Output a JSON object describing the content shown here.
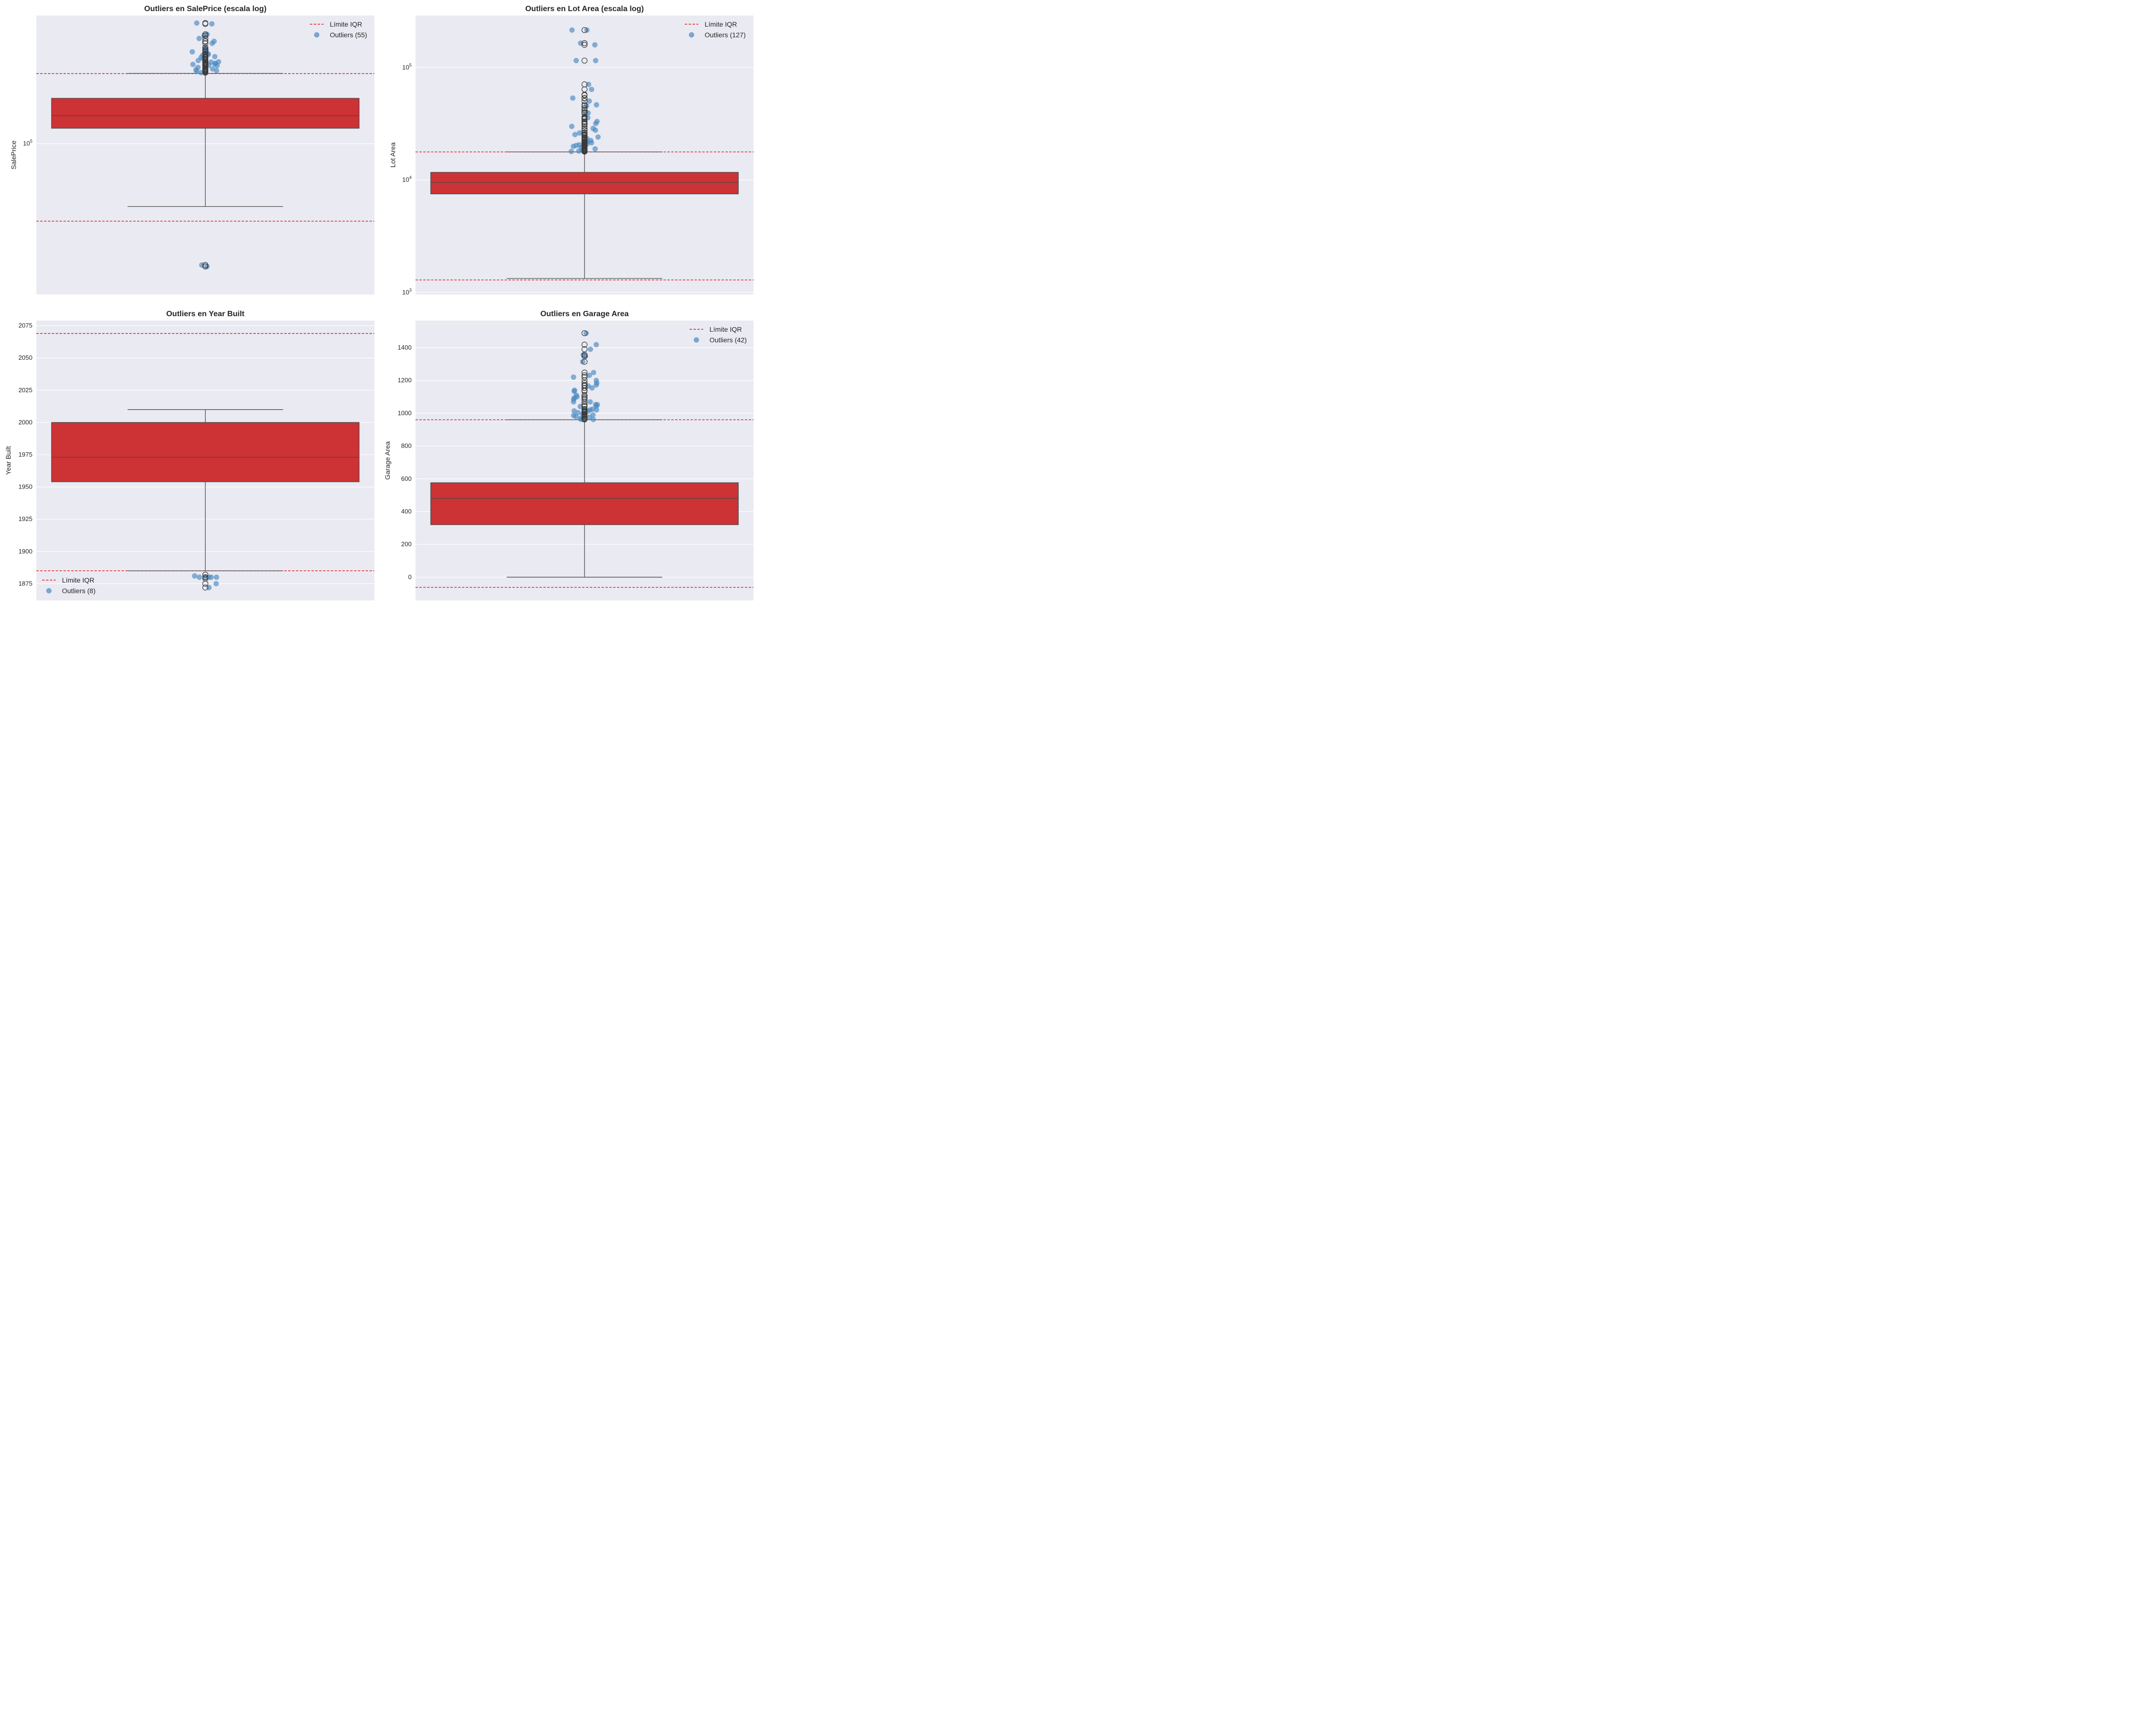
{
  "figure": {
    "background": "#ffffff",
    "axes_background": "#eaeaf2",
    "grid_color": "#ffffff",
    "box_fill": "#cd3235",
    "box_edge": "#4a4a4a",
    "iqr_line_color": "#e31a1c",
    "outlier_color": "#4a88c0"
  },
  "chart_data": [
    {
      "type": "box",
      "id": "saleprice",
      "title": "Outliers en SalePrice (escala log)",
      "xlabel": "",
      "ylabel": "SalePrice",
      "yscale": "log",
      "ylim": [
        8000,
        857000
      ],
      "yticks": [
        {
          "value": 100000,
          "label_base": "10",
          "label_exp": "5"
        }
      ],
      "grid": true,
      "box": {
        "q1": 129500,
        "median": 160000,
        "q3": 214000,
        "whisker_low": 34900,
        "whisker_high": 325000
      },
      "iqr_limits": {
        "lower": 27300,
        "upper": 324000
      },
      "fliers": [
        755000,
        745000,
        625000,
        611657,
        582933,
        556581,
        555000,
        538000,
        501837,
        485000,
        475000,
        466500,
        451950,
        446261,
        440000,
        438780,
        430000,
        426000,
        424870,
        423000,
        415298,
        410000,
        402861,
        402000,
        394617,
        394432,
        392500,
        392000,
        386250,
        385000,
        381000,
        380000,
        378500,
        377500,
        377426,
        375000,
        372500,
        372402,
        370878,
        369900,
        367294,
        359100,
        354000,
        350000,
        348000,
        345000,
        341000,
        340000,
        337500,
        335000,
        333168,
        328900,
        12789,
        13100,
        12789
      ],
      "outlier_points": [
        755000,
        745000,
        625000,
        611657,
        582933,
        556581,
        538000,
        501837,
        485000,
        475000,
        466500,
        451950,
        446261,
        440000,
        430000,
        424870,
        415298,
        402861,
        394617,
        392500,
        385000,
        380000,
        377426,
        372402,
        369900,
        359100,
        350000,
        345000,
        340000,
        335000,
        328900,
        12789,
        13100
      ],
      "legend": {
        "position": "upper-right",
        "entries": [
          {
            "label": "Límite IQR",
            "kind": "dashed-line"
          },
          {
            "label": "Outliers (55)",
            "kind": "marker"
          }
        ]
      }
    },
    {
      "type": "box",
      "id": "lotarea",
      "title": "Outliers en Lot Area (escala log)",
      "xlabel": "",
      "ylabel": "Lot Area",
      "yscale": "log",
      "ylim": [
        960,
        290000
      ],
      "yticks": [
        {
          "value": 1000,
          "label_base": "10",
          "label_exp": "3"
        },
        {
          "value": 10000,
          "label_base": "10",
          "label_exp": "4"
        },
        {
          "value": 100000,
          "label_base": "10",
          "label_exp": "5"
        }
      ],
      "grid": true,
      "box": {
        "q1": 7510,
        "median": 9530,
        "q3": 11690,
        "whisker_low": 1330,
        "whisker_high": 17770
      },
      "iqr_limits": {
        "lower": 1290,
        "upper": 17770
      },
      "fliers": [
        215245,
        164660,
        159000,
        115149,
        70761,
        63887,
        57200,
        56600,
        53504,
        53227,
        50271,
        46589,
        45600,
        43500,
        41600,
        40094,
        39384,
        39290,
        36500,
        35760,
        35133,
        34650,
        33120,
        32668,
        31770,
        31250,
        29959,
        28698,
        27697,
        27650,
        26400,
        26178,
        25419,
        25339,
        25286,
        25095,
        24682,
        24090,
        23730,
        23595,
        23257,
        22950,
        22420,
        21872,
        21780,
        21695,
        21579,
        21533,
        21453,
        21384,
        21286,
        21000,
        20896,
        20781,
        20544,
        20431,
        20355,
        20270,
        20064,
        19900,
        19800,
        19690,
        19378,
        19296,
        19138,
        18890,
        18800,
        18500,
        18386,
        18160,
        18062,
        18030,
        17920,
        17871
      ],
      "outlier_points": [
        215245,
        215245,
        164660,
        159000,
        115149,
        115149,
        70761,
        63887,
        53504,
        50271,
        46589,
        45600,
        40094,
        39384,
        35760,
        33120,
        31770,
        29959,
        28698,
        27697,
        26178,
        25339,
        24090,
        23257,
        22420,
        21872,
        21384,
        20896,
        20544,
        20270,
        19900,
        19378,
        18890,
        18386,
        18062,
        17920
      ],
      "legend": {
        "position": "upper-right",
        "entries": [
          {
            "label": "Límite IQR",
            "kind": "dashed-line"
          },
          {
            "label": "Outliers (127)",
            "kind": "marker"
          }
        ]
      }
    },
    {
      "type": "box",
      "id": "yearbuilt",
      "title": "Outliers en Year Built",
      "xlabel": "",
      "ylabel": "Year Built",
      "yscale": "linear",
      "ylim": [
        1862,
        2079
      ],
      "yticks": [
        {
          "value": 1875,
          "label": "1875"
        },
        {
          "value": 1900,
          "label": "1900"
        },
        {
          "value": 1925,
          "label": "1925"
        },
        {
          "value": 1950,
          "label": "1950"
        },
        {
          "value": 1975,
          "label": "1975"
        },
        {
          "value": 2000,
          "label": "2000"
        },
        {
          "value": 2025,
          "label": "2025"
        },
        {
          "value": 2050,
          "label": "2050"
        },
        {
          "value": 2075,
          "label": "2075"
        }
      ],
      "grid": true,
      "box": {
        "q1": 1954,
        "median": 1973,
        "q3": 2000,
        "whisker_low": 1885,
        "whisker_high": 2010
      },
      "iqr_limits": {
        "lower": 1885,
        "upper": 2069
      },
      "fliers": [
        1882,
        1880,
        1880,
        1879,
        1875,
        1872
      ],
      "outlier_points": [
        1880,
        1880,
        1880,
        1880,
        1881,
        1880,
        1875,
        1872
      ],
      "legend": {
        "position": "lower-left",
        "entries": [
          {
            "label": "Límite IQR",
            "kind": "dashed-line"
          },
          {
            "label": "Outliers (8)",
            "kind": "marker"
          }
        ]
      }
    },
    {
      "type": "box",
      "id": "garagearea",
      "title": "Outliers en Garage Area",
      "xlabel": "",
      "ylabel": "Garage Area",
      "yscale": "linear",
      "ylim": [
        -142,
        1565
      ],
      "yticks": [
        {
          "value": 0,
          "label": "0"
        },
        {
          "value": 200,
          "label": "200"
        },
        {
          "value": 400,
          "label": "400"
        },
        {
          "value": 600,
          "label": "600"
        },
        {
          "value": 800,
          "label": "800"
        },
        {
          "value": 1000,
          "label": "1000"
        },
        {
          "value": 1200,
          "label": "1200"
        },
        {
          "value": 1400,
          "label": "1400"
        }
      ],
      "grid": true,
      "box": {
        "q1": 320,
        "median": 480,
        "q3": 576,
        "whisker_low": 0,
        "whisker_high": 960
      },
      "iqr_limits": {
        "lower": -62,
        "upper": 960
      },
      "fliers": [
        1488,
        1418,
        1390,
        1356,
        1348,
        1314,
        1248,
        1231,
        1220,
        1200,
        1184,
        1172,
        1166,
        1154,
        1140,
        1134,
        1110,
        1100,
        1092,
        1085,
        1069,
        1053,
        1052,
        1043,
        1041,
        1025,
        1020,
        1014,
        1012,
        1008,
        1003,
        995,
        990,
        986,
        980,
        975,
        968,
        966,
        962
      ],
      "outlier_points": [
        1488,
        1418,
        1390,
        1348,
        1314,
        1248,
        1231,
        1220,
        1184,
        1172,
        1166,
        1134,
        1110,
        1092,
        1069,
        1053,
        1043,
        1041,
        1025,
        1020,
        1014,
        1008,
        995,
        986,
        968,
        962,
        1100,
        1200,
        1154,
        1052,
        1003,
        975,
        966,
        980,
        990,
        1012,
        1085,
        1140,
        1356,
        1069,
        1020,
        962
      ],
      "legend": {
        "position": "upper-right",
        "entries": [
          {
            "label": "Límite IQR",
            "kind": "dashed-line"
          },
          {
            "label": "Outliers (42)",
            "kind": "marker"
          }
        ]
      }
    }
  ]
}
